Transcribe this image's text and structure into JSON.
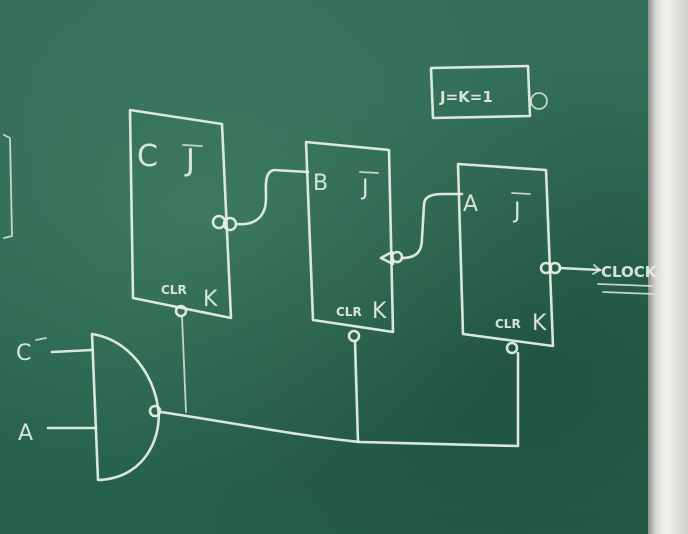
{
  "flipflops": {
    "c": {
      "name": "C",
      "j": "J",
      "k": "K",
      "clr": "CLR"
    },
    "b": {
      "name": "B",
      "j": "J",
      "k": "K",
      "clr": "CLR"
    },
    "a": {
      "name": "A",
      "j": "J",
      "k": "K",
      "clr": "CLR"
    }
  },
  "note": "J=K=1",
  "clock_label": "CLOCK",
  "gate_inputs": {
    "c_bar": "C",
    "a": "A"
  },
  "colors": {
    "board": "#2d6a55",
    "chalk": "#e9f2ea",
    "frame": "#e0e0de"
  }
}
